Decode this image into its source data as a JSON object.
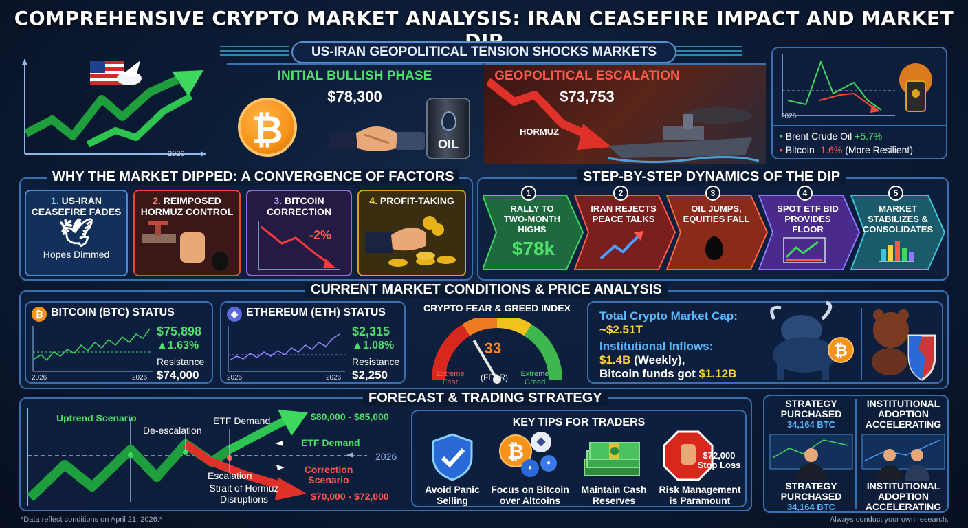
{
  "title": "COMPREHENSIVE CRYPTO MARKET ANALYSIS: IRAN CEASEFIRE IMPACT AND MARKET DIP",
  "top": {
    "banner": "US-IRAN GEOPOLITICAL TENSION SHOCKS MARKETS",
    "left_chart_year": "2026",
    "bullish_title": "INITIAL BULLISH PHASE",
    "bullish_price": "$78,300",
    "oil_label": "OIL",
    "escalation_title": "GEOPOLITICAL ESCALATION",
    "escalation_price": "$73,753",
    "hormuz_label": "HORMUZ",
    "right_chart_year": "2026",
    "brent_label": "Brent Crude Oil",
    "brent_value": "+5.7%",
    "btc_label": "Bitcoin",
    "btc_value": "-1.6%",
    "btc_note": "(More Resilient)"
  },
  "factors": {
    "title": "WHY THE MARKET DIPPED: A CONVERGENCE OF FACTORS",
    "items": [
      {
        "num": "1.",
        "label": "US-IRAN CEASEFIRE FADES",
        "caption": "Hopes Dimmed"
      },
      {
        "num": "2.",
        "label": "REIMPOSED HORMUZ CONTROL",
        "caption": ""
      },
      {
        "num": "3.",
        "label": "BITCOIN CORRECTION",
        "caption": "-2%"
      },
      {
        "num": "4.",
        "label": "PROFIT-TAKING",
        "caption": ""
      }
    ]
  },
  "dynamics": {
    "title": "STEP-BY-STEP DYNAMICS OF THE DIP",
    "steps": [
      {
        "num": "1",
        "label": "RALLY TO TWO-MONTH HIGHS",
        "value": "$78k"
      },
      {
        "num": "2",
        "label": "IRAN REJECTS PEACE TALKS",
        "value": ""
      },
      {
        "num": "3",
        "label": "OIL JUMPS, EQUITIES FALL",
        "value": ""
      },
      {
        "num": "4",
        "label": "SPOT ETF BID PROVIDES FLOOR",
        "value": ""
      },
      {
        "num": "5",
        "label": "MARKET STABILIZES & CONSOLIDATES",
        "value": ""
      }
    ]
  },
  "conditions": {
    "title": "CURRENT MARKET CONDITIONS & PRICE ANALYSIS",
    "btc": {
      "title": "BITCOIN (BTC) STATUS",
      "price": "$75,898",
      "change": "▲1.63%",
      "resistance_label": "Resistance",
      "resistance": "$74,000",
      "year_start": "2026",
      "year_end": "2026"
    },
    "eth": {
      "title": "ETHEREUM (ETH) STATUS",
      "price": "$2,315",
      "change": "▲1.08%",
      "resistance_label": "Resistance",
      "resistance": "$2,250",
      "year_start": "2026",
      "year_end": "2026"
    },
    "fear_greed": {
      "title": "CRYPTO FEAR & GREED INDEX",
      "value": "33",
      "level": 0.33,
      "state": "(FEAR)",
      "left_label": "Extreme Fear",
      "right_label": "Extreme Greed"
    },
    "market": {
      "cap_label": "Total Crypto Market Cap:",
      "cap_value": "~$2.51T",
      "inflow_label": "Institutional Inflows:",
      "inflow_value": "$1.4B",
      "inflow_period": "(Weekly),",
      "btc_funds_label": "Bitcoin funds got",
      "btc_funds_value": "$1.12B"
    }
  },
  "forecast": {
    "title": "FORECAST & TRADING STRATEGY",
    "uptrend": "Uptrend Scenario",
    "deescalation": "De-escalation",
    "etf_demand_1": "ETF Demand",
    "etf_demand_2": "ETF Demand",
    "upper_range": "$80,000 - $85,000",
    "year": "2026",
    "escalation": "Escalation",
    "hormuz_disruptions": "Strait of Hormuz Disruptions",
    "correction": "Correction Scenario",
    "lower_range": "$70,000 - $72,000"
  },
  "tips": {
    "title": "KEY TIPS FOR TRADERS",
    "items": [
      {
        "label": "Avoid Panic Selling"
      },
      {
        "label": "Focus on Bitcoin over Altcoins"
      },
      {
        "label": "Maintain Cash Reserves"
      },
      {
        "label": "Risk Management is Paramount",
        "badge_price": "$72,000",
        "badge_text": "Stop Loss"
      }
    ]
  },
  "institutional": {
    "top_left": {
      "title": "STRATEGY PURCHASED",
      "value": "34,164 BTC"
    },
    "top_right": {
      "title": "INSTITUTIONAL ADOPTION ACCELERATING"
    },
    "bottom_left": {
      "title": "STRATEGY PURCHASED",
      "value": "34,164 BTC"
    },
    "bottom_right": {
      "title": "INSTITUTIONAL ADOPTION ACCELERATING"
    }
  },
  "footer": {
    "left": "*Data reflect conditions on April 21, 2026.*",
    "right": "Always conduct your own research."
  },
  "colors": {
    "green": "#4ee06a",
    "red": "#ff5a4a",
    "gold": "#ffd23e",
    "panel_border": "#3a6fb0",
    "bitcoin_orange": "#f7931a"
  }
}
